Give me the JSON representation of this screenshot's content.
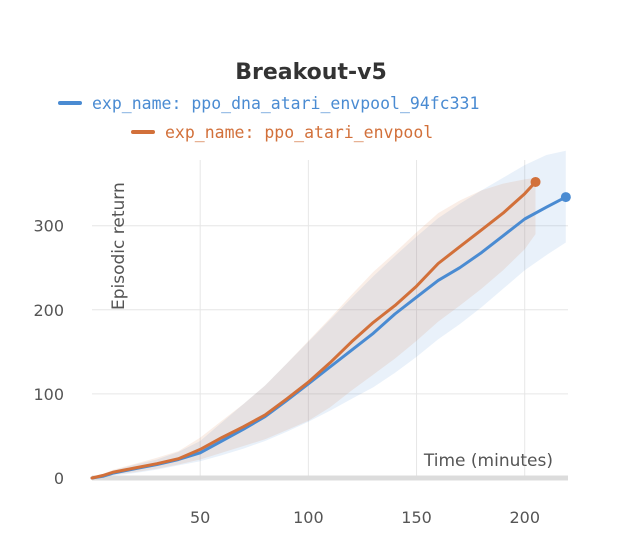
{
  "chart_data": {
    "type": "line",
    "title": "Breakout-v5",
    "xlabel": "Time (minutes)",
    "ylabel": "Episodic return",
    "xlim": [
      0,
      220
    ],
    "ylim": [
      0,
      390
    ],
    "xticks": [
      50,
      100,
      150,
      200
    ],
    "yticks": [
      0,
      100,
      200,
      300
    ],
    "grid": true,
    "legend_position": "top-center",
    "series": [
      {
        "name": "exp_name: ppo_dna_atari_envpool_94fc331",
        "color": "#4a8bd2",
        "x": [
          0,
          5,
          10,
          20,
          30,
          40,
          50,
          60,
          70,
          80,
          90,
          100,
          110,
          120,
          130,
          140,
          150,
          160,
          170,
          180,
          190,
          200,
          210,
          219
        ],
        "y": [
          0,
          2,
          6,
          11,
          16,
          22,
          30,
          44,
          58,
          73,
          92,
          112,
          132,
          152,
          172,
          195,
          215,
          235,
          250,
          268,
          288,
          308,
          322,
          334
        ],
        "upper": [
          1,
          4,
          9,
          16,
          22,
          31,
          44,
          66,
          88,
          110,
          136,
          162,
          188,
          214,
          240,
          264,
          287,
          309,
          326,
          342,
          357,
          372,
          384,
          389
        ],
        "lower": [
          0,
          1,
          3,
          6,
          10,
          15,
          20,
          27,
          35,
          44,
          55,
          67,
          80,
          94,
          108,
          125,
          144,
          165,
          183,
          203,
          225,
          247,
          265,
          280
        ]
      },
      {
        "name": "exp_name: ppo_atari_envpool",
        "color": "#d2703a",
        "x": [
          0,
          5,
          10,
          20,
          30,
          40,
          50,
          60,
          70,
          80,
          90,
          100,
          110,
          120,
          130,
          140,
          150,
          160,
          170,
          180,
          190,
          200,
          205
        ],
        "y": [
          0,
          3,
          7,
          12,
          17,
          23,
          34,
          48,
          61,
          75,
          94,
          114,
          137,
          162,
          185,
          205,
          228,
          255,
          275,
          295,
          315,
          338,
          352
        ],
        "upper": [
          1,
          5,
          10,
          17,
          24,
          32,
          48,
          68,
          88,
          110,
          136,
          163,
          190,
          218,
          245,
          268,
          292,
          315,
          330,
          342,
          350,
          355,
          357
        ],
        "lower": [
          0,
          1,
          4,
          7,
          11,
          16,
          22,
          30,
          38,
          46,
          57,
          68,
          84,
          104,
          123,
          142,
          163,
          186,
          205,
          225,
          247,
          272,
          290
        ]
      }
    ]
  }
}
